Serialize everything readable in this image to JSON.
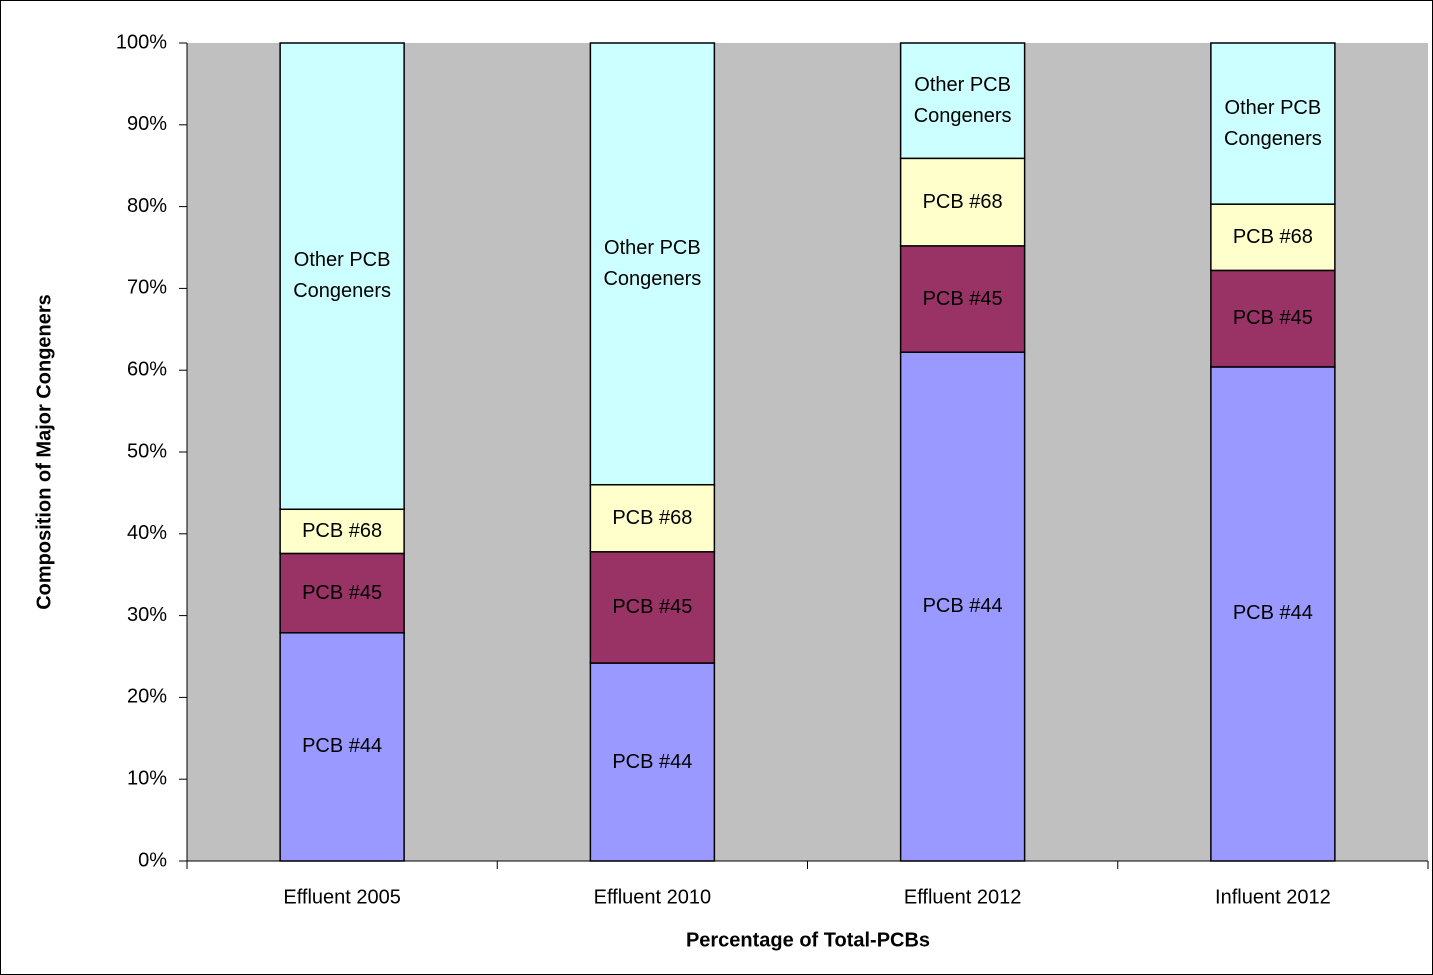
{
  "chart_data": {
    "type": "bar",
    "stacked": true,
    "xlabel": "Percentage of Total-PCBs",
    "ylabel": "Composition of Major Congeners",
    "categories": [
      "Effluent 2005",
      "Effluent 2010",
      "Effluent 2012",
      "Influent 2012"
    ],
    "series": [
      {
        "name": "PCB #44",
        "color": "#9999ff",
        "values": [
          27.9,
          24.2,
          62.2,
          60.4
        ]
      },
      {
        "name": "PCB #45",
        "color": "#993366",
        "values": [
          9.7,
          13.6,
          13.0,
          11.8
        ]
      },
      {
        "name": "PCB #68",
        "color": "#ffffcc",
        "values": [
          5.4,
          8.2,
          10.7,
          8.1
        ]
      },
      {
        "name": "Other PCB Congeners",
        "color": "#ccffff",
        "values": [
          57.0,
          54.0,
          14.1,
          19.7
        ]
      }
    ],
    "ylim": [
      0,
      100
    ],
    "yticks": [
      {
        "value": 0,
        "label": "0%"
      },
      {
        "value": 10,
        "label": "10%"
      },
      {
        "value": 20,
        "label": "20%"
      },
      {
        "value": 30,
        "label": "30%"
      },
      {
        "value": 40,
        "label": "40%"
      },
      {
        "value": 50,
        "label": "50%"
      },
      {
        "value": 60,
        "label": "60%"
      },
      {
        "value": 70,
        "label": "70%"
      },
      {
        "value": 80,
        "label": "80%"
      },
      {
        "value": 90,
        "label": "90%"
      },
      {
        "value": 100,
        "label": "100%"
      }
    ],
    "plot_background": "#c0c0c0"
  }
}
